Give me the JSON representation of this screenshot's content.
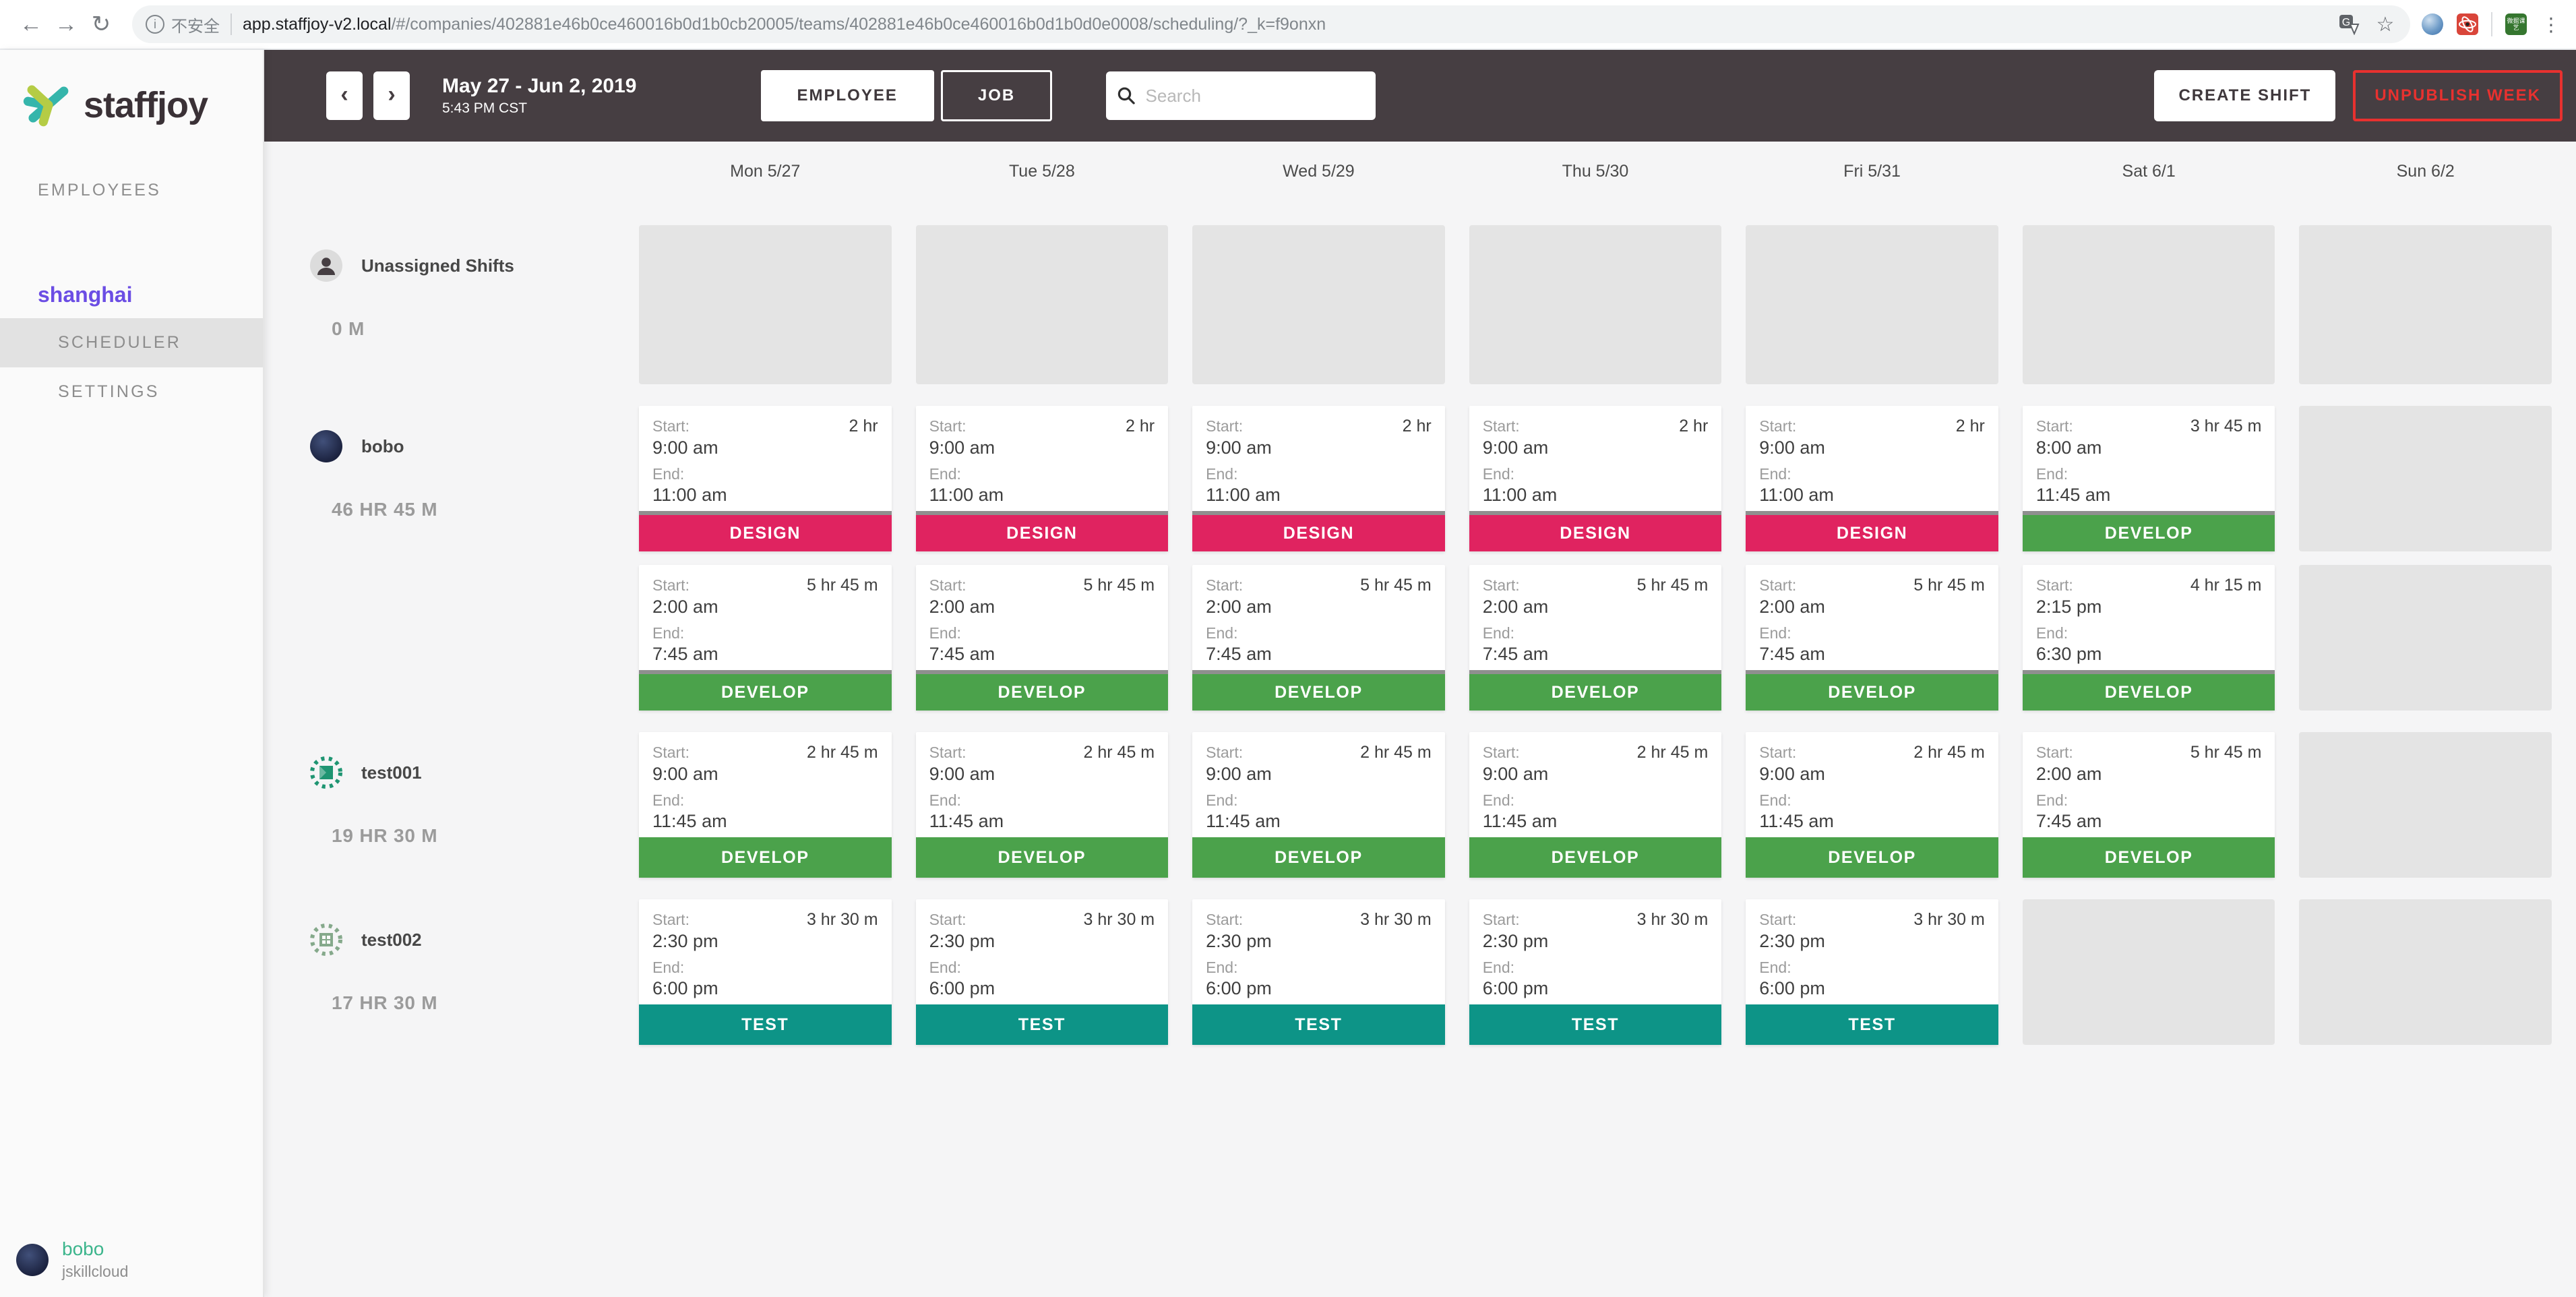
{
  "colors": {
    "design": "#e02360",
    "develop": "#4ba24b",
    "test": "#0d9487",
    "accent_purple": "#6b4de4",
    "accent_teal": "#3cb58c",
    "unpublish_red": "#e8312f",
    "header_dark": "#463e42",
    "identicon_green": "#1f9572",
    "identicon_sage": "#85a98b"
  },
  "browser": {
    "security_label": "不安全",
    "url_host": "app.staffjoy-v2.local",
    "url_path": "/#/companies/402881e46b0ce460016b0d1b0cb20005/teams/402881e46b0ce460016b0d1b0d0e0008/scheduling/?_k=f9onxn",
    "extension_green_label": "微掘课艺"
  },
  "header": {
    "date_range": "May 27 - Jun 2, 2019",
    "time": "5:43 PM CST",
    "employee_label": "EMPLOYEE",
    "job_label": "JOB",
    "search_placeholder": "Search",
    "create_shift_label": "CREATE SHIFT",
    "unpublish_week_label": "UNPUBLISH WEEK"
  },
  "sidebar": {
    "brand": "staffjoy",
    "employees_label": "EMPLOYEES",
    "team_name": "shanghai",
    "scheduler_label": "SCHEDULER",
    "settings_label": "SETTINGS",
    "user_name": "bobo",
    "user_company": "jskillcloud"
  },
  "calendar": {
    "start_label": "Start:",
    "end_label": "End:",
    "days": [
      "Mon 5/27",
      "Tue 5/28",
      "Wed 5/29",
      "Thu 5/30",
      "Fri 5/31",
      "Sat 6/1",
      "Sun 6/2"
    ],
    "rows": [
      {
        "name": "Unassigned Shifts",
        "hours": "0 M",
        "avatar": "unassigned",
        "tall": true,
        "shift_rows": [
          [
            null,
            null,
            null,
            null,
            null,
            null,
            null
          ]
        ]
      },
      {
        "name": "bobo",
        "hours": "46 HR 45 M",
        "avatar": "photo",
        "tall": false,
        "shift_rows": [
          [
            {
              "duration": "2 hr",
              "start": "9:00 am",
              "end": "11:00 am",
              "job": "DESIGN",
              "color": "design",
              "divider": true
            },
            {
              "duration": "2 hr",
              "start": "9:00 am",
              "end": "11:00 am",
              "job": "DESIGN",
              "color": "design",
              "divider": true
            },
            {
              "duration": "2 hr",
              "start": "9:00 am",
              "end": "11:00 am",
              "job": "DESIGN",
              "color": "design",
              "divider": true
            },
            {
              "duration": "2 hr",
              "start": "9:00 am",
              "end": "11:00 am",
              "job": "DESIGN",
              "color": "design",
              "divider": true
            },
            {
              "duration": "2 hr",
              "start": "9:00 am",
              "end": "11:00 am",
              "job": "DESIGN",
              "color": "design",
              "divider": true
            },
            {
              "duration": "3 hr 45 m",
              "start": "8:00 am",
              "end": "11:45 am",
              "job": "DEVELOP",
              "color": "develop",
              "divider": true
            },
            null
          ],
          [
            {
              "duration": "5 hr 45 m",
              "start": "2:00 am",
              "end": "7:45 am",
              "job": "DEVELOP",
              "color": "develop",
              "divider": true
            },
            {
              "duration": "5 hr 45 m",
              "start": "2:00 am",
              "end": "7:45 am",
              "job": "DEVELOP",
              "color": "develop",
              "divider": true
            },
            {
              "duration": "5 hr 45 m",
              "start": "2:00 am",
              "end": "7:45 am",
              "job": "DEVELOP",
              "color": "develop",
              "divider": true
            },
            {
              "duration": "5 hr 45 m",
              "start": "2:00 am",
              "end": "7:45 am",
              "job": "DEVELOP",
              "color": "develop",
              "divider": true
            },
            {
              "duration": "5 hr 45 m",
              "start": "2:00 am",
              "end": "7:45 am",
              "job": "DEVELOP",
              "color": "develop",
              "divider": true
            },
            {
              "duration": "4 hr 15 m",
              "start": "2:15 pm",
              "end": "6:30 pm",
              "job": "DEVELOP",
              "color": "develop",
              "divider": true
            },
            null
          ]
        ]
      },
      {
        "name": "test001",
        "hours": "19 HR 30 M",
        "avatar": "identicon-green",
        "tall": false,
        "shift_rows": [
          [
            {
              "duration": "2 hr 45 m",
              "start": "9:00 am",
              "end": "11:45 am",
              "job": "DEVELOP",
              "color": "develop",
              "divider": false
            },
            {
              "duration": "2 hr 45 m",
              "start": "9:00 am",
              "end": "11:45 am",
              "job": "DEVELOP",
              "color": "develop",
              "divider": false
            },
            {
              "duration": "2 hr 45 m",
              "start": "9:00 am",
              "end": "11:45 am",
              "job": "DEVELOP",
              "color": "develop",
              "divider": false
            },
            {
              "duration": "2 hr 45 m",
              "start": "9:00 am",
              "end": "11:45 am",
              "job": "DEVELOP",
              "color": "develop",
              "divider": false
            },
            {
              "duration": "2 hr 45 m",
              "start": "9:00 am",
              "end": "11:45 am",
              "job": "DEVELOP",
              "color": "develop",
              "divider": false
            },
            {
              "duration": "5 hr 45 m",
              "start": "2:00 am",
              "end": "7:45 am",
              "job": "DEVELOP",
              "color": "develop",
              "divider": false
            },
            null
          ]
        ]
      },
      {
        "name": "test002",
        "hours": "17 HR 30 M",
        "avatar": "identicon-sage",
        "tall": false,
        "shift_rows": [
          [
            {
              "duration": "3 hr 30 m",
              "start": "2:30 pm",
              "end": "6:00 pm",
              "job": "TEST",
              "color": "test",
              "divider": false
            },
            {
              "duration": "3 hr 30 m",
              "start": "2:30 pm",
              "end": "6:00 pm",
              "job": "TEST",
              "color": "test",
              "divider": false
            },
            {
              "duration": "3 hr 30 m",
              "start": "2:30 pm",
              "end": "6:00 pm",
              "job": "TEST",
              "color": "test",
              "divider": false
            },
            {
              "duration": "3 hr 30 m",
              "start": "2:30 pm",
              "end": "6:00 pm",
              "job": "TEST",
              "color": "test",
              "divider": false
            },
            {
              "duration": "3 hr 30 m",
              "start": "2:30 pm",
              "end": "6:00 pm",
              "job": "TEST",
              "color": "test",
              "divider": false
            },
            null,
            null
          ]
        ]
      }
    ]
  }
}
